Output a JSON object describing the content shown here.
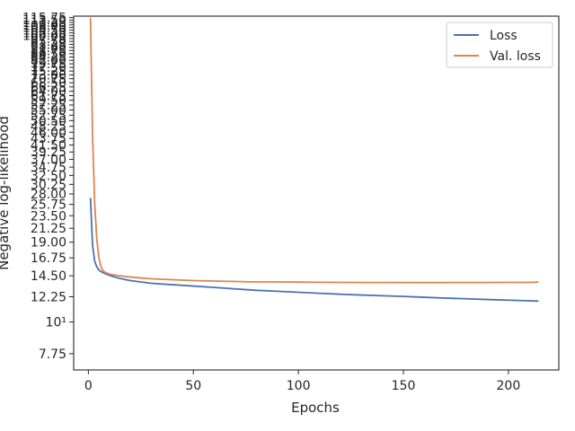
{
  "chart_data": {
    "type": "line",
    "title": "",
    "xlabel": "Epochs",
    "ylabel": "Negative log-likelihood",
    "xlim": [
      -7,
      224
    ],
    "ylim": [
      6.8,
      117
    ],
    "yscale": "log",
    "grid": false,
    "legend_position": "top-right",
    "xticks": [
      0,
      50,
      100,
      150,
      200
    ],
    "yticks": [
      7.75,
      10,
      12.25,
      14.5,
      16.75,
      19.0,
      21.25,
      23.5,
      25.75,
      28.0,
      30.25,
      32.5,
      34.75,
      37.0,
      39.25,
      41.5,
      43.75,
      46.0,
      48.25,
      50.5,
      52.75,
      55.0,
      57.25,
      59.5,
      61.75,
      64.0,
      66.25,
      68.5,
      70.75,
      73.0,
      75.25,
      77.5,
      79.75,
      82.0,
      84.25,
      86.5,
      88.75,
      91.0,
      93.25,
      95.5,
      97.75,
      100.0,
      102.25,
      104.5,
      106.75,
      109.0,
      111.25,
      113.5,
      115.75
    ],
    "ytick_labels": [
      "7.75",
      "10¹",
      "12.25",
      "14.50",
      "16.75",
      "19.00",
      "21.25",
      "23.50",
      "25.75",
      "28.00",
      "30.25",
      "32.50",
      "34.75",
      "37.00",
      "39.25",
      "41.50",
      "43.75",
      "46.00",
      "48.25",
      "50.50",
      "52.75",
      "55.00",
      "57.25",
      "59.50",
      "61.75",
      "64.00",
      "66.25",
      "68.50",
      "70.75",
      "73.00",
      "75.25",
      "77.50",
      "79.75",
      "82.00",
      "84.25",
      "86.50",
      "88.75",
      "91.00",
      "93.25",
      "95.50",
      "97.75",
      "100.00",
      "102.25",
      "104.50",
      "106.75",
      "109.00",
      "111.25",
      "113.50",
      "115.75"
    ],
    "series": [
      {
        "name": "Loss",
        "color": "#4c72b0",
        "x": [
          1,
          2,
          3,
          4,
          5,
          6,
          8,
          10,
          12,
          15,
          20,
          25,
          30,
          40,
          50,
          60,
          70,
          80,
          90,
          100,
          110,
          120,
          130,
          140,
          150,
          160,
          170,
          180,
          190,
          200,
          210,
          214
        ],
        "y": [
          27.0,
          18.5,
          16.3,
          15.6,
          15.2,
          15.0,
          14.75,
          14.55,
          14.4,
          14.2,
          13.95,
          13.8,
          13.65,
          13.5,
          13.35,
          13.2,
          13.05,
          12.9,
          12.8,
          12.7,
          12.6,
          12.5,
          12.42,
          12.35,
          12.28,
          12.2,
          12.12,
          12.05,
          11.98,
          11.92,
          11.86,
          11.83
        ]
      },
      {
        "name": "Val. loss",
        "color": "#dd8452",
        "x": [
          1,
          2,
          3,
          4,
          5,
          6,
          7,
          8,
          10,
          12,
          15,
          20,
          25,
          30,
          40,
          50,
          60,
          70,
          80,
          90,
          100,
          110,
          120,
          130,
          140,
          150,
          160,
          170,
          180,
          190,
          200,
          210,
          214
        ],
        "y": [
          115.0,
          45.0,
          26.0,
          19.5,
          16.8,
          15.6,
          15.1,
          14.9,
          14.7,
          14.6,
          14.5,
          14.35,
          14.25,
          14.15,
          14.05,
          13.95,
          13.9,
          13.85,
          13.8,
          13.8,
          13.78,
          13.76,
          13.75,
          13.74,
          13.74,
          13.73,
          13.73,
          13.73,
          13.74,
          13.74,
          13.75,
          13.75,
          13.78
        ]
      }
    ]
  }
}
